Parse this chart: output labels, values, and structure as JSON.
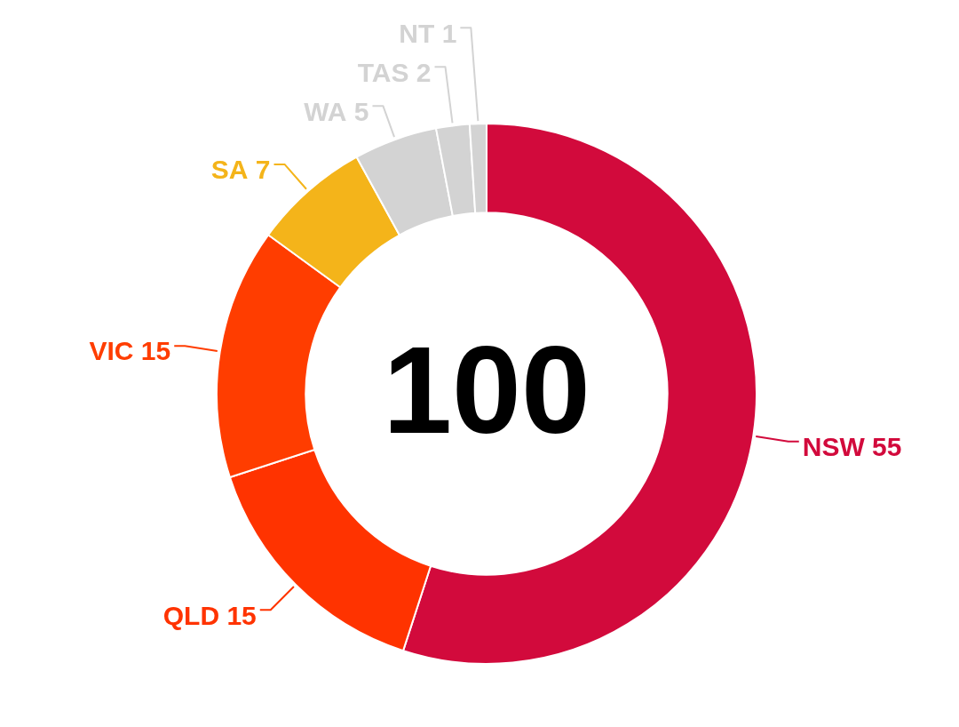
{
  "chart_data": {
    "type": "donut",
    "categories": [
      "NSW",
      "QLD",
      "VIC",
      "SA",
      "WA",
      "TAS",
      "NT"
    ],
    "values": [
      55,
      15,
      15,
      7,
      5,
      2,
      1
    ],
    "colors": [
      "#d20a3c",
      "#ff3300",
      "#ff3d00",
      "#f4b41a",
      "#d3d3d3",
      "#d3d3d3",
      "#d3d3d3"
    ],
    "data_labels": true,
    "legend": false,
    "annotations": [
      "100"
    ]
  }
}
